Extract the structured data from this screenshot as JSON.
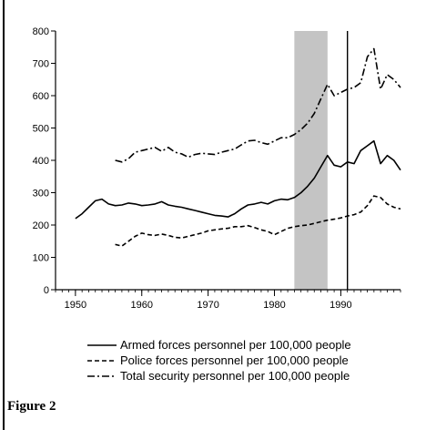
{
  "chart_data": {
    "type": "line",
    "title": "",
    "xlabel": "",
    "ylabel": "",
    "xlim": [
      1947,
      1999
    ],
    "ylim": [
      0,
      800
    ],
    "x_ticks": [
      1950,
      1960,
      1970,
      1980,
      1990
    ],
    "y_ticks": [
      0,
      100,
      200,
      300,
      400,
      500,
      600,
      700,
      800
    ],
    "shaded_region": [
      1983,
      1988
    ],
    "vertical_line": 1991,
    "legend_position": "bottom",
    "series": [
      {
        "name": "Armed forces personnel per 100,000 people",
        "style": "solid",
        "points": [
          [
            1950,
            220
          ],
          [
            1951,
            235
          ],
          [
            1952,
            255
          ],
          [
            1953,
            275
          ],
          [
            1954,
            280
          ],
          [
            1955,
            265
          ],
          [
            1956,
            260
          ],
          [
            1957,
            262
          ],
          [
            1958,
            268
          ],
          [
            1959,
            265
          ],
          [
            1960,
            260
          ],
          [
            1961,
            262
          ],
          [
            1962,
            265
          ],
          [
            1963,
            272
          ],
          [
            1964,
            262
          ],
          [
            1965,
            258
          ],
          [
            1966,
            255
          ],
          [
            1967,
            250
          ],
          [
            1968,
            245
          ],
          [
            1969,
            240
          ],
          [
            1970,
            235
          ],
          [
            1971,
            230
          ],
          [
            1972,
            228
          ],
          [
            1973,
            225
          ],
          [
            1974,
            235
          ],
          [
            1975,
            250
          ],
          [
            1976,
            262
          ],
          [
            1977,
            265
          ],
          [
            1978,
            270
          ],
          [
            1979,
            265
          ],
          [
            1980,
            275
          ],
          [
            1981,
            280
          ],
          [
            1982,
            278
          ],
          [
            1983,
            285
          ],
          [
            1984,
            300
          ],
          [
            1985,
            320
          ],
          [
            1986,
            345
          ],
          [
            1987,
            380
          ],
          [
            1988,
            415
          ],
          [
            1989,
            385
          ],
          [
            1990,
            380
          ],
          [
            1991,
            395
          ],
          [
            1992,
            390
          ],
          [
            1993,
            430
          ],
          [
            1994,
            445
          ],
          [
            1995,
            460
          ],
          [
            1996,
            390
          ],
          [
            1997,
            415
          ],
          [
            1998,
            400
          ],
          [
            1999,
            370
          ]
        ]
      },
      {
        "name": "Police forces personnel per 100,000 people",
        "style": "dashed",
        "points": [
          [
            1956,
            140
          ],
          [
            1957,
            135
          ],
          [
            1958,
            150
          ],
          [
            1959,
            165
          ],
          [
            1960,
            175
          ],
          [
            1961,
            170
          ],
          [
            1962,
            168
          ],
          [
            1963,
            172
          ],
          [
            1964,
            168
          ],
          [
            1965,
            162
          ],
          [
            1966,
            160
          ],
          [
            1967,
            165
          ],
          [
            1968,
            170
          ],
          [
            1969,
            175
          ],
          [
            1970,
            182
          ],
          [
            1971,
            185
          ],
          [
            1972,
            188
          ],
          [
            1973,
            190
          ],
          [
            1974,
            195
          ],
          [
            1975,
            195
          ],
          [
            1976,
            198
          ],
          [
            1977,
            192
          ],
          [
            1978,
            185
          ],
          [
            1979,
            180
          ],
          [
            1980,
            170
          ],
          [
            1981,
            180
          ],
          [
            1982,
            190
          ],
          [
            1983,
            195
          ],
          [
            1984,
            198
          ],
          [
            1985,
            200
          ],
          [
            1986,
            205
          ],
          [
            1987,
            210
          ],
          [
            1988,
            215
          ],
          [
            1989,
            218
          ],
          [
            1990,
            222
          ],
          [
            1991,
            228
          ],
          [
            1992,
            232
          ],
          [
            1993,
            240
          ],
          [
            1994,
            260
          ],
          [
            1995,
            290
          ],
          [
            1996,
            285
          ],
          [
            1997,
            265
          ],
          [
            1998,
            255
          ],
          [
            1999,
            250
          ]
        ]
      },
      {
        "name": "Total security personnel per 100,000 people",
        "style": "dashdot",
        "points": [
          [
            1956,
            400
          ],
          [
            1957,
            395
          ],
          [
            1958,
            405
          ],
          [
            1959,
            425
          ],
          [
            1960,
            430
          ],
          [
            1961,
            435
          ],
          [
            1962,
            440
          ],
          [
            1963,
            428
          ],
          [
            1964,
            440
          ],
          [
            1965,
            425
          ],
          [
            1966,
            420
          ],
          [
            1967,
            410
          ],
          [
            1968,
            418
          ],
          [
            1969,
            422
          ],
          [
            1970,
            420
          ],
          [
            1971,
            418
          ],
          [
            1972,
            425
          ],
          [
            1973,
            430
          ],
          [
            1974,
            435
          ],
          [
            1975,
            448
          ],
          [
            1976,
            460
          ],
          [
            1977,
            462
          ],
          [
            1978,
            455
          ],
          [
            1979,
            450
          ],
          [
            1980,
            460
          ],
          [
            1981,
            470
          ],
          [
            1982,
            470
          ],
          [
            1983,
            480
          ],
          [
            1984,
            495
          ],
          [
            1985,
            515
          ],
          [
            1986,
            545
          ],
          [
            1987,
            590
          ],
          [
            1988,
            635
          ],
          [
            1989,
            600
          ],
          [
            1990,
            610
          ],
          [
            1991,
            620
          ],
          [
            1992,
            625
          ],
          [
            1993,
            640
          ],
          [
            1994,
            720
          ],
          [
            1995,
            745
          ],
          [
            1996,
            620
          ],
          [
            1997,
            665
          ],
          [
            1998,
            650
          ],
          [
            1999,
            625
          ]
        ]
      }
    ]
  },
  "caption": "Figure 2"
}
